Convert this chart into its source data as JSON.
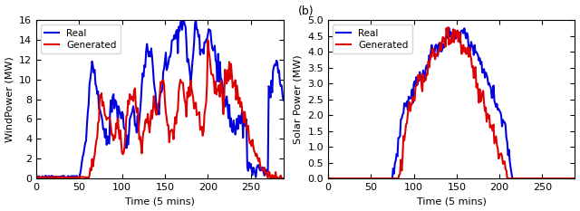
{
  "wind_real_color": "#0000dd",
  "wind_gen_color": "#dd0000",
  "solar_real_color": "#0000dd",
  "solar_gen_color": "#dd0000",
  "wind_ylabel": "WindPower (MW)",
  "solar_ylabel": "Solar Power (MW)",
  "xlabel": "Time (5 mins)",
  "wind_ylim": [
    0,
    16
  ],
  "wind_yticks": [
    0,
    2,
    4,
    6,
    8,
    10,
    12,
    14,
    16
  ],
  "solar_ylim": [
    0,
    5
  ],
  "solar_yticks": [
    0,
    0.5,
    1.0,
    1.5,
    2.0,
    2.5,
    3.0,
    3.5,
    4.0,
    4.5,
    5.0
  ],
  "xlim": [
    0,
    288
  ],
  "xticks": [
    0,
    50,
    100,
    150,
    200,
    250
  ],
  "legend_real": "Real",
  "legend_gen": "Generated",
  "panel_b_label": "(b)",
  "line_width": 1.5,
  "bg_color": "#ffffff"
}
